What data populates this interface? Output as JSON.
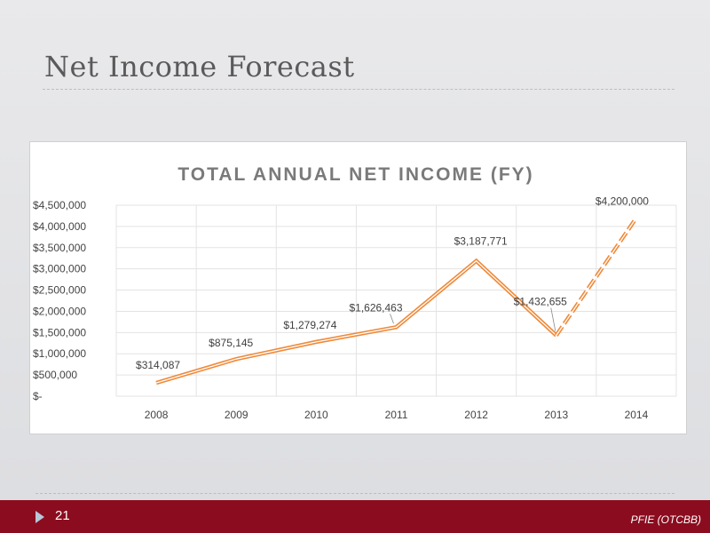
{
  "slide": {
    "title": "Net Income Forecast",
    "page_number": "21",
    "footer_ticker": "PFIE (OTCBB)"
  },
  "colors": {
    "line": "#ef8a3a",
    "footer": "#8c0c1f",
    "title_text": "#7a7a7a"
  },
  "chart_data": {
    "type": "line",
    "title": "TOTAL ANNUAL NET INCOME (FY)",
    "xlabel": "",
    "ylabel": "",
    "categories": [
      "2008",
      "2009",
      "2010",
      "2011",
      "2012",
      "2013",
      "2014"
    ],
    "values": [
      314087,
      875145,
      1279274,
      1626463,
      3187771,
      1432655,
      4200000
    ],
    "data_labels": [
      "$314,087",
      "$875,145",
      "$1,279,274",
      "$1,626,463",
      "$3,187,771",
      "$1,432,655",
      "$4,200,000"
    ],
    "forecast_from_index": 5,
    "ylim": [
      0,
      4500000
    ],
    "y_ticks": [
      0,
      500000,
      1000000,
      1500000,
      2000000,
      2500000,
      3000000,
      3500000,
      4000000,
      4500000
    ],
    "y_tick_labels": [
      "$-",
      "$500,000",
      "$1,000,000",
      "$1,500,000",
      "$2,000,000",
      "$2,500,000",
      "$3,000,000",
      "$3,500,000",
      "$4,000,000",
      "$4,500,000"
    ],
    "grid": true,
    "legend": "none"
  }
}
